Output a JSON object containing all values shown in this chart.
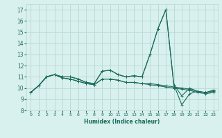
{
  "xlabel": "Humidex (Indice chaleur)",
  "bg_color": "#d8f0ee",
  "grid_color": "#b8d8d4",
  "line_color": "#1a6b5a",
  "xlim": [
    -0.5,
    23.5
  ],
  "ylim": [
    8,
    17.5
  ],
  "xticks": [
    0,
    1,
    2,
    3,
    4,
    5,
    6,
    7,
    8,
    9,
    10,
    11,
    12,
    13,
    14,
    15,
    16,
    17,
    18,
    19,
    20,
    21,
    22,
    23
  ],
  "yticks": [
    8,
    9,
    10,
    11,
    12,
    13,
    14,
    15,
    16,
    17
  ],
  "series": [
    [
      9.6,
      10.2,
      11.0,
      11.2,
      11.0,
      11.0,
      10.8,
      10.5,
      10.4,
      11.5,
      11.6,
      11.2,
      11.0,
      11.1,
      11.0,
      13.0,
      15.3,
      17.0,
      10.3,
      9.3,
      10.0,
      9.7,
      9.6,
      9.8
    ],
    [
      9.6,
      10.2,
      11.0,
      11.2,
      11.0,
      11.0,
      10.8,
      10.5,
      10.4,
      11.5,
      11.6,
      11.2,
      11.0,
      11.1,
      11.0,
      13.0,
      15.3,
      17.0,
      10.3,
      8.5,
      9.5,
      9.7,
      9.6,
      9.8
    ],
    [
      9.6,
      10.2,
      11.0,
      11.2,
      10.9,
      10.8,
      10.6,
      10.4,
      10.3,
      10.8,
      10.8,
      10.7,
      10.5,
      10.5,
      10.4,
      10.4,
      10.3,
      10.2,
      10.1,
      10.0,
      9.9,
      9.7,
      9.6,
      9.7
    ],
    [
      9.6,
      10.2,
      11.0,
      11.2,
      10.9,
      10.8,
      10.6,
      10.4,
      10.3,
      10.8,
      10.8,
      10.7,
      10.5,
      10.5,
      10.4,
      10.3,
      10.2,
      10.1,
      10.0,
      9.9,
      9.8,
      9.6,
      9.5,
      9.6
    ]
  ]
}
